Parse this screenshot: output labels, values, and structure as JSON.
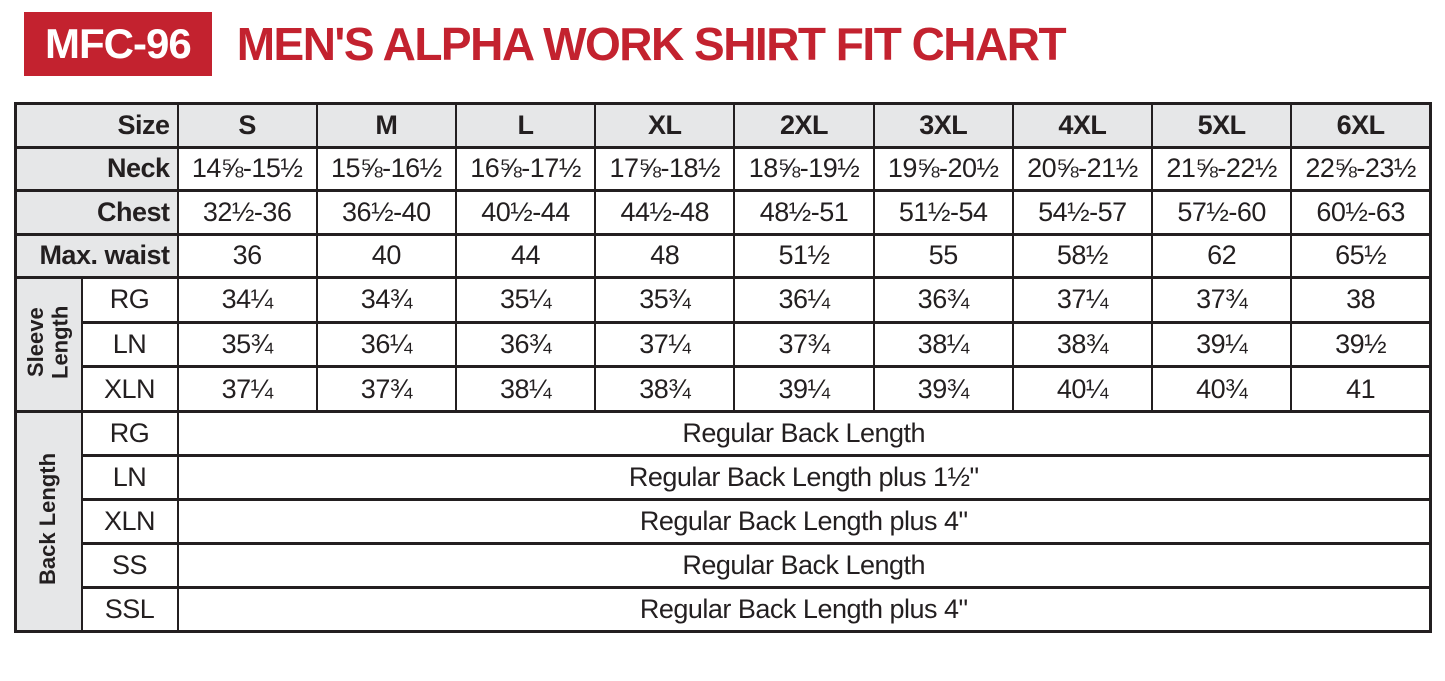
{
  "header": {
    "badge": "MFC-96",
    "title": "MEN'S ALPHA WORK SHIRT FIT CHART"
  },
  "colors": {
    "accent_red": "#C3222F",
    "header_gray": "#E6E7E8",
    "line_black": "#231F20"
  },
  "table": {
    "corner_label": "Size",
    "columns": [
      "S",
      "M",
      "L",
      "XL",
      "2XL",
      "3XL",
      "4XL",
      "5XL",
      "6XL"
    ],
    "measurement_rows": [
      {
        "label": "Neck",
        "values": [
          "14⅝-15½",
          "15⅝-16½",
          "16⅝-17½",
          "17⅝-18½",
          "18⅝-19½",
          "19⅝-20½",
          "20⅝-21½",
          "21⅝-22½",
          "22⅝-23½"
        ]
      },
      {
        "label": "Chest",
        "values": [
          "32½-36",
          "36½-40",
          "40½-44",
          "44½-48",
          "48½-51",
          "51½-54",
          "54½-57",
          "57½-60",
          "60½-63"
        ]
      },
      {
        "label": "Max. waist",
        "values": [
          "36",
          "40",
          "44",
          "48",
          "51½",
          "55",
          "58½",
          "62",
          "65½"
        ]
      }
    ],
    "sleeve_length": {
      "group_label": "Sleeve Length",
      "rows": [
        {
          "label": "RG",
          "values": [
            "34¼",
            "34¾",
            "35¼",
            "35¾",
            "36¼",
            "36¾",
            "37¼",
            "37¾",
            "38"
          ]
        },
        {
          "label": "LN",
          "values": [
            "35¾",
            "36¼",
            "36¾",
            "37¼",
            "37¾",
            "38¼",
            "38¾",
            "39¼",
            "39½"
          ]
        },
        {
          "label": "XLN",
          "values": [
            "37¼",
            "37¾",
            "38¼",
            "38¾",
            "39¼",
            "39¾",
            "40¼",
            "40¾",
            "41"
          ]
        }
      ]
    },
    "back_length": {
      "group_label": "Back Length",
      "rows": [
        {
          "label": "RG",
          "text": "Regular Back Length"
        },
        {
          "label": "LN",
          "text": "Regular Back Length plus 1½\""
        },
        {
          "label": "XLN",
          "text": "Regular Back Length plus 4\""
        },
        {
          "label": "SS",
          "text": "Regular Back Length"
        },
        {
          "label": "SSL",
          "text": "Regular Back Length plus 4\""
        }
      ]
    }
  }
}
